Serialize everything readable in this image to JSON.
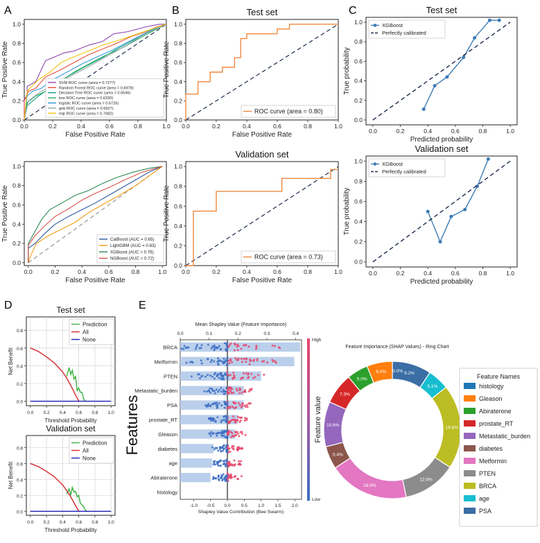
{
  "chart_data": [
    {
      "panel": "A",
      "type": "line",
      "subplot": "A-top",
      "title": "",
      "xlabel": "False Positive Rate",
      "ylabel": "True Positive Rate",
      "xlim": [
        0,
        1
      ],
      "ylim": [
        0,
        1.05
      ],
      "xticks": [
        "0.0",
        "0.2",
        "0.4",
        "0.6",
        "0.8",
        "1.0"
      ],
      "yticks": [
        "0.0",
        "0.2",
        "0.4",
        "0.6",
        "0.8",
        "1.0"
      ],
      "legend": "bottom-right",
      "series": [
        {
          "name": "SVM ROC curve (area = 0.7277)",
          "color": "#8e44ad",
          "x": [
            0,
            0,
            0.02,
            0.02,
            0.08,
            0.15,
            0.2,
            0.28,
            0.35,
            0.45,
            0.55,
            0.63,
            0.72,
            0.85,
            0.95,
            1
          ],
          "y": [
            0,
            0.22,
            0.25,
            0.35,
            0.4,
            0.62,
            0.65,
            0.7,
            0.72,
            0.78,
            0.82,
            0.9,
            0.92,
            0.97,
            1,
            1
          ]
        },
        {
          "name": "Random Forest ROC curve (area = 0.6978)",
          "color": "#e74c3c",
          "x": [
            0,
            0,
            0.03,
            0.08,
            0.15,
            0.25,
            0.35,
            0.45,
            0.55,
            0.65,
            0.75,
            0.85,
            0.93,
            1
          ],
          "y": [
            0,
            0.2,
            0.3,
            0.33,
            0.45,
            0.52,
            0.6,
            0.68,
            0.74,
            0.8,
            0.87,
            0.92,
            0.97,
            1
          ]
        },
        {
          "name": "Decision Tree ROC curve (area = 0.6546)",
          "color": "#16a085",
          "x": [
            0,
            0.02,
            0.1,
            0.2,
            0.3,
            0.42,
            0.55,
            0.65,
            0.75,
            0.88,
            1
          ],
          "y": [
            0,
            0.15,
            0.25,
            0.35,
            0.45,
            0.55,
            0.65,
            0.74,
            0.82,
            0.92,
            1
          ]
        },
        {
          "name": "knn ROC curve (area = 0.6330)",
          "color": "#27ae60",
          "x": [
            0,
            0.02,
            0.08,
            0.15,
            0.25,
            0.35,
            0.45,
            0.55,
            0.7,
            0.82,
            0.92,
            1
          ],
          "y": [
            0,
            0.18,
            0.25,
            0.3,
            0.4,
            0.5,
            0.58,
            0.66,
            0.76,
            0.86,
            0.94,
            1
          ]
        },
        {
          "name": "logistic ROC curve (area = 0.6726)",
          "color": "#3498db",
          "x": [
            0,
            0.02,
            0.06,
            0.12,
            0.2,
            0.3,
            0.4,
            0.5,
            0.62,
            0.75,
            0.88,
            1
          ],
          "y": [
            0,
            0.25,
            0.3,
            0.33,
            0.42,
            0.5,
            0.58,
            0.65,
            0.73,
            0.83,
            0.93,
            1
          ]
        },
        {
          "name": "gnb ROC curve (area = 0.6527)",
          "color": "#95a5a6",
          "x": [
            0,
            0.03,
            0.1,
            0.18,
            0.28,
            0.38,
            0.48,
            0.6,
            0.72,
            0.85,
            1
          ],
          "y": [
            0,
            0.2,
            0.28,
            0.35,
            0.42,
            0.5,
            0.58,
            0.68,
            0.78,
            0.9,
            1
          ]
        },
        {
          "name": "mlp ROC curve (area = 0.7082)",
          "color": "#f1c40f",
          "x": [
            0,
            0.02,
            0.05,
            0.1,
            0.18,
            0.26,
            0.35,
            0.45,
            0.55,
            0.68,
            0.8,
            0.92,
            1
          ],
          "y": [
            0,
            0.3,
            0.35,
            0.42,
            0.5,
            0.6,
            0.66,
            0.72,
            0.78,
            0.84,
            0.9,
            0.96,
            1
          ]
        }
      ]
    },
    {
      "panel": "A",
      "type": "line",
      "subplot": "A-bottom",
      "title": "",
      "xlabel": "False Positive Rate",
      "ylabel": "True Positive Rate",
      "xlim": [
        -0.03,
        1.03
      ],
      "ylim": [
        -0.03,
        1.05
      ],
      "xticks": [
        "0.0",
        "0.2",
        "0.4",
        "0.6",
        "0.8",
        "1.0"
      ],
      "yticks": [
        "0.0",
        "0.2",
        "0.4",
        "0.6",
        "0.8",
        "1.0"
      ],
      "legend": "bottom-right",
      "series": [
        {
          "name": "CatBoost (AUC = 0.65)",
          "color": "#2c5aa0",
          "x": [
            0,
            0,
            0.05,
            0.12,
            0.2,
            0.3,
            0.4,
            0.5,
            0.6,
            0.7,
            0.8,
            0.9,
            1
          ],
          "y": [
            0,
            0.15,
            0.2,
            0.3,
            0.4,
            0.48,
            0.55,
            0.62,
            0.7,
            0.78,
            0.86,
            0.94,
            1
          ]
        },
        {
          "name": "LightGBM (AUC = 0.63)",
          "color": "#f39c12",
          "x": [
            0,
            0.02,
            0.06,
            0.15,
            0.25,
            0.35,
            0.45,
            0.55,
            0.68,
            0.8,
            0.92,
            1
          ],
          "y": [
            0,
            0.08,
            0.2,
            0.28,
            0.35,
            0.42,
            0.52,
            0.6,
            0.7,
            0.8,
            0.92,
            1
          ]
        },
        {
          "name": "XGBoost (AUC = 0.76)",
          "color": "#2e8b57",
          "x": [
            0,
            0,
            0.04,
            0.1,
            0.16,
            0.25,
            0.35,
            0.45,
            0.55,
            0.65,
            0.78,
            0.9,
            1
          ],
          "y": [
            0,
            0.2,
            0.3,
            0.45,
            0.55,
            0.62,
            0.7,
            0.75,
            0.82,
            0.88,
            0.94,
            0.98,
            1
          ]
        },
        {
          "name": "NGBoost (AUC = 0.72)",
          "color": "#d9534f",
          "x": [
            0,
            0,
            0.05,
            0.12,
            0.2,
            0.3,
            0.4,
            0.5,
            0.6,
            0.72,
            0.85,
            1
          ],
          "y": [
            0,
            0.18,
            0.28,
            0.38,
            0.48,
            0.56,
            0.65,
            0.72,
            0.78,
            0.86,
            0.94,
            1
          ]
        }
      ]
    },
    {
      "panel": "B",
      "type": "line",
      "subplot": "B-top",
      "title": "Test set",
      "xlabel": "False Positive Rate",
      "ylabel": "True Positive Rate",
      "xlim": [
        0,
        1
      ],
      "ylim": [
        0,
        1.05
      ],
      "xticks": [
        "0.0",
        "0.2",
        "0.4",
        "0.6",
        "0.8",
        "1.0"
      ],
      "yticks": [
        "0.0",
        "0.2",
        "0.4",
        "0.6",
        "0.8",
        "1.0"
      ],
      "legend": "bottom-right",
      "series": [
        {
          "name": "ROC curve (area = 0.80)",
          "color": "#f0883e",
          "x": [
            0,
            0,
            0.08,
            0.08,
            0.16,
            0.16,
            0.24,
            0.24,
            0.32,
            0.32,
            0.36,
            0.36,
            0.4,
            0.4,
            0.6,
            0.6,
            0.68,
            0.68,
            1
          ],
          "y": [
            0,
            0.27,
            0.27,
            0.4,
            0.4,
            0.5,
            0.5,
            0.55,
            0.55,
            0.65,
            0.65,
            0.85,
            0.85,
            0.9,
            0.9,
            0.95,
            0.95,
            1,
            1
          ]
        }
      ]
    },
    {
      "panel": "B",
      "type": "line",
      "subplot": "B-bottom",
      "title": "Validation set",
      "xlabel": "False Positive Rate",
      "ylabel": "True Positive Rate",
      "xlim": [
        0,
        1
      ],
      "ylim": [
        0,
        1.05
      ],
      "xticks": [
        "0.0",
        "0.2",
        "0.4",
        "0.6",
        "0.8",
        "1.0"
      ],
      "yticks": [
        "0.0",
        "0.2",
        "0.4",
        "0.6",
        "0.8",
        "1.0"
      ],
      "legend": "bottom-right",
      "series": [
        {
          "name": "ROC curve (area = 0.73)",
          "color": "#f0883e",
          "x": [
            0,
            0.05,
            0.05,
            0.2,
            0.2,
            0.63,
            0.63,
            0.95,
            0.95,
            1
          ],
          "y": [
            0,
            0,
            0.55,
            0.55,
            0.75,
            0.75,
            0.88,
            0.88,
            0.97,
            0.97
          ]
        }
      ]
    },
    {
      "panel": "C",
      "type": "line",
      "subplot": "C-top",
      "title": "Test set",
      "xlabel": "Predicted probability",
      "ylabel": "True probability",
      "xlim": [
        -0.05,
        1.05
      ],
      "ylim": [
        -0.05,
        1.05
      ],
      "xticks": [
        "0.0",
        "0.2",
        "0.4",
        "0.6",
        "0.8",
        "1.0"
      ],
      "yticks": [
        "0.0",
        "0.2",
        "0.4",
        "0.6",
        "0.8",
        "1.0"
      ],
      "legend": "top-left",
      "series": [
        {
          "name": "XGBoost",
          "color": "#3b7bb5",
          "x": [
            0.37,
            0.45,
            0.54,
            0.66,
            0.74,
            0.85,
            0.92
          ],
          "y": [
            0.11,
            0.35,
            0.44,
            0.64,
            0.84,
            1.02,
            1.02
          ]
        },
        {
          "name": "Perfectly calibrated",
          "color": "#1a2a4a",
          "x": [
            0,
            1
          ],
          "y": [
            0,
            1
          ]
        }
      ]
    },
    {
      "panel": "C",
      "type": "line",
      "subplot": "C-bottom",
      "title": "Validation set",
      "xlabel": "Predicted probability",
      "ylabel": "True probability",
      "xlim": [
        -0.05,
        1.05
      ],
      "ylim": [
        -0.05,
        1.05
      ],
      "xticks": [
        "0.0",
        "0.2",
        "0.4",
        "0.6",
        "0.8",
        "1.0"
      ],
      "yticks": [
        "0.0",
        "0.2",
        "0.4",
        "0.6",
        "0.8",
        "1.0"
      ],
      "legend": "top-left",
      "series": [
        {
          "name": "XGBoost",
          "color": "#3b7bb5",
          "x": [
            0.4,
            0.49,
            0.57,
            0.67,
            0.76,
            0.84
          ],
          "y": [
            0.5,
            0.2,
            0.45,
            0.52,
            0.75,
            1.02
          ]
        },
        {
          "name": "Perfectly calibrated",
          "color": "#1a2a4a",
          "x": [
            0,
            1
          ],
          "y": [
            0,
            1
          ]
        }
      ]
    },
    {
      "panel": "D",
      "type": "line",
      "subplot": "D-top",
      "title": "Test set",
      "xlabel": "Threshold Probability",
      "ylabel": "Net Benefit",
      "xlim": [
        -0.05,
        1.05
      ],
      "ylim": [
        -0.05,
        0.95
      ],
      "xticks": [
        "0.0",
        "0.2",
        "0.4",
        "0.6",
        "0.8",
        "1.0"
      ],
      "yticks": [
        "0.0",
        "0.2",
        "0.4",
        "0.6",
        "0.8"
      ],
      "legend": "top-right",
      "series": [
        {
          "name": "Prediction",
          "color": "#3cb043",
          "x": [
            0,
            0.3,
            0.38,
            0.45,
            0.48,
            0.5,
            0.52,
            0.54,
            0.56,
            0.58,
            0.6,
            0.62,
            0.64,
            0.66,
            0.68,
            0.7
          ],
          "y": [
            null,
            null,
            null,
            0.28,
            0.38,
            0.3,
            0.35,
            0.25,
            0.28,
            0.12,
            0.15,
            0.1,
            0.1,
            0.03,
            0.0,
            0.0
          ]
        },
        {
          "name": "All",
          "color": "#d62728",
          "x": [
            0,
            0.1,
            0.2,
            0.3,
            0.4,
            0.45,
            0.5,
            0.55,
            0.6,
            0.62
          ],
          "y": [
            0.6,
            0.56,
            0.5,
            0.43,
            0.33,
            0.26,
            0.18,
            0.09,
            0.0,
            0.0
          ]
        },
        {
          "name": "None",
          "color": "#1f1fb4",
          "x": [
            0,
            1
          ],
          "y": [
            0,
            0
          ]
        }
      ]
    },
    {
      "panel": "D",
      "type": "line",
      "subplot": "D-bottom",
      "title": "Validation set",
      "xlabel": "Threshold Probability",
      "ylabel": "Net Benefit",
      "xlim": [
        -0.05,
        1.05
      ],
      "ylim": [
        -0.05,
        0.95
      ],
      "xticks": [
        "0.0",
        "0.2",
        "0.4",
        "0.6",
        "0.8",
        "1.0"
      ],
      "yticks": [
        "0.0",
        "0.2",
        "0.4",
        "0.6",
        "0.8"
      ],
      "legend": "top-right",
      "series": [
        {
          "name": "Prediction",
          "color": "#3cb043",
          "x": [
            0.45,
            0.48,
            0.5,
            0.52,
            0.54,
            0.56,
            0.58,
            0.6,
            0.62,
            0.64,
            0.66,
            0.68,
            0.7
          ],
          "y": [
            0.22,
            0.28,
            0.2,
            0.3,
            0.24,
            0.25,
            0.18,
            0.2,
            0.1,
            0.08,
            0.06,
            0.02,
            0.0
          ]
        },
        {
          "name": "All",
          "color": "#d62728",
          "x": [
            0,
            0.1,
            0.2,
            0.3,
            0.4,
            0.45,
            0.5,
            0.55,
            0.6,
            0.62
          ],
          "y": [
            0.6,
            0.56,
            0.5,
            0.43,
            0.33,
            0.26,
            0.18,
            0.09,
            0.0,
            0.0
          ]
        },
        {
          "name": "None",
          "color": "#1f1fb4",
          "x": [
            0,
            1
          ],
          "y": [
            0,
            0
          ]
        }
      ]
    },
    {
      "panel": "E",
      "type": "bar",
      "subplot": "E-shap",
      "title": "Mean Shapley Value (Feature Importance)",
      "xlabel": "Shapley Value Contribution (Bee Swarm)",
      "ylabel": "Features",
      "top_axis_ticks": [
        "0.0",
        "0.1",
        "0.2",
        "0.3",
        "0.4"
      ],
      "top_xlim": [
        0,
        0.42
      ],
      "bottom_axis_ticks": [
        "-1.0",
        "-0.5",
        "0.0",
        "0.5",
        "1.0",
        "1.5",
        "2.0"
      ],
      "bottom_xlim": [
        -1.4,
        2.2
      ],
      "categories": [
        "BRCA",
        "Metformin",
        "PTEN",
        "Metastatic_burden",
        "PSA",
        "prostate_RT",
        "Gleason",
        "diabetes",
        "age",
        "Abiraterone",
        "histology"
      ],
      "values": [
        0.415,
        0.395,
        0.28,
        0.22,
        0.22,
        0.2,
        0.19,
        0.115,
        0.11,
        0.105,
        0.0
      ],
      "colorbar": {
        "title": "Feature value",
        "high": "High",
        "low": "Low"
      }
    },
    {
      "panel": "E",
      "type": "pie",
      "subplot": "E-ring",
      "title": "Feature Importance (SHAP Values) - Ring Chart",
      "legend_title": "Feature Names",
      "legend_labels": [
        "histology",
        "Gleason",
        "Abiraterone",
        "prostate_RT",
        "Metastatic_burden",
        "diabetes",
        "Metformin",
        "PTEN",
        "BRCA",
        "age",
        "PSA"
      ],
      "slices": [
        {
          "label": "PSA",
          "value": 9.2,
          "color": "#3a6ea5"
        },
        {
          "label": "age",
          "value": 5.1,
          "color": "#17becf"
        },
        {
          "label": "BRCA",
          "value": 19.8,
          "color": "#bcbd22"
        },
        {
          "label": "PTEN",
          "value": 12.6,
          "color": "#8c8c8c"
        },
        {
          "label": "Metformin",
          "value": 18.9,
          "color": "#e377c2"
        },
        {
          "label": "diabetes",
          "value": 5.4,
          "color": "#8c564b"
        },
        {
          "label": "Metastatic_burden",
          "value": 10.6,
          "color": "#9467bd"
        },
        {
          "label": "prostate_RT",
          "value": 7.3,
          "color": "#d62728"
        },
        {
          "label": "Abiraterone",
          "value": 5.0,
          "color": "#2ca02c"
        },
        {
          "label": "Gleason",
          "value": 6.0,
          "color": "#ff7f0e"
        },
        {
          "label": "histology",
          "value": 0.0,
          "color": "#1f77b4"
        }
      ],
      "slice_labels": [
        "9.2%",
        "5.1%",
        "19.8%",
        "12.6%",
        "18.9%",
        "5.4%",
        "10.6%",
        "7.3%",
        "5.0%",
        "6.0%",
        "0.0%"
      ]
    }
  ],
  "panel_letters": [
    "A",
    "B",
    "C",
    "D",
    "E"
  ],
  "colors": {
    "diag": "#1a1a1a",
    "dpos": "#e8476a",
    "dneg": "#3c6fc4",
    "bar": "#aec7e8"
  }
}
